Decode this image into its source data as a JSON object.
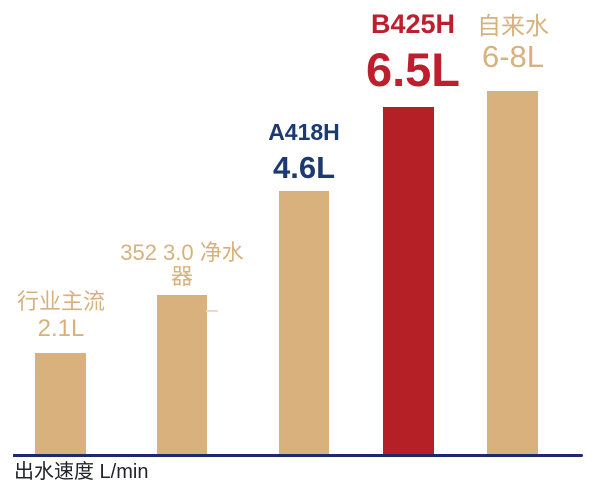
{
  "page": {
    "background": "#ffffff"
  },
  "colors": {
    "bar_tan": "#d8b17c",
    "bar_red": "#b52026",
    "label_tan": "#d8b17c",
    "label_navy": "#1c3a72",
    "label_red": "#be1e2d",
    "axis_line": "#1a2a6c",
    "axis_label": "#23242b"
  },
  "axis": {
    "label": "出水速度 L/min"
  },
  "bars": [
    {
      "name": "行业主流",
      "value_label": "2.1L"
    },
    {
      "name": "352 3.0 净水器",
      "value_label": ""
    },
    {
      "name": "A418H",
      "value_label": "4.6L"
    },
    {
      "name": "B425H",
      "value_label": "6.5L"
    },
    {
      "name": "自来水",
      "value_label": "6-8L"
    }
  ],
  "chart_data": {
    "type": "bar",
    "title": "",
    "xlabel": "出水速度 L/min",
    "ylabel": "",
    "categories": [
      "行业主流",
      "352 3.0 净水器",
      "A418H",
      "B425H",
      "自来水"
    ],
    "values": [
      2.1,
      3.0,
      4.6,
      6.5,
      7.0
    ],
    "value_labels": [
      "2.1L",
      "",
      "4.6L",
      "6.5L",
      "6-8L"
    ],
    "bar_colors": [
      "#d8b17c",
      "#d8b17c",
      "#d8b17c",
      "#b52026",
      "#d8b17c"
    ],
    "label_colors": [
      "#d8b17c",
      "#d8b17c",
      "#1c3a72",
      "#be1e2d",
      "#d8b17c"
    ],
    "unit": "L/min",
    "grid": false,
    "legend": "none",
    "axis_baseline": true
  }
}
